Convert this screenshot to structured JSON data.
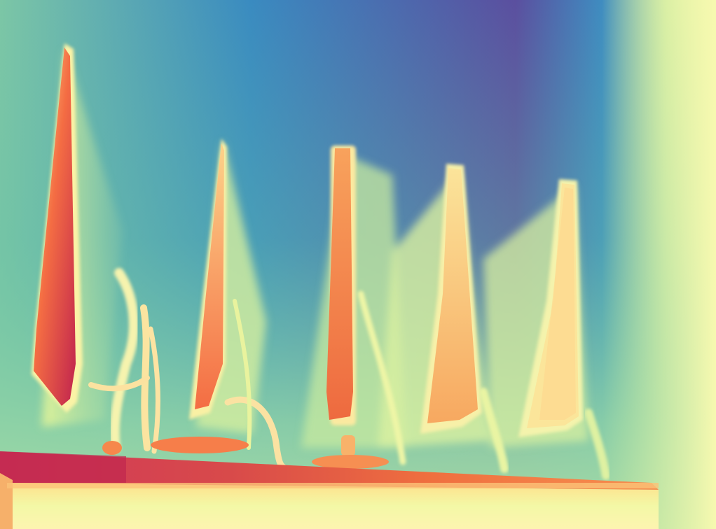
{
  "image": {
    "kind": "depth-map",
    "colormap": "spectral",
    "description_free": true,
    "palette": {
      "far_violet": "#5a4e9e",
      "far_blue": "#3288bd",
      "mid_teal": "#66c2a5",
      "mid_green": "#abdda4",
      "near_cream": "#e6f598",
      "near_yellow": "#fee08b",
      "near_orange": "#fdae61",
      "nearer_red": "#f46d43",
      "nearest_crimson": "#d53e4f",
      "nearest_dark": "#b0164a"
    }
  }
}
